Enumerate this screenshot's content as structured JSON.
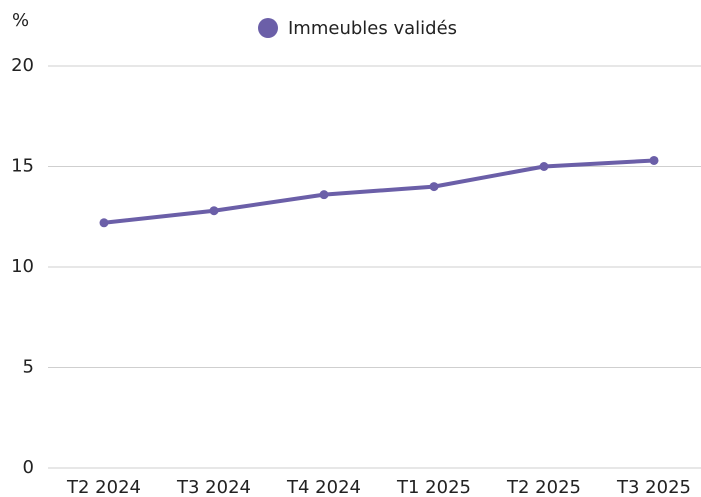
{
  "chart_data": {
    "type": "line",
    "y_axis_label": "%",
    "categories": [
      "T2 2024",
      "T3 2024",
      "T4 2024",
      "T1 2025",
      "T2 2025",
      "T3 2025"
    ],
    "series": [
      {
        "name": "Immeubles validés",
        "color": "#6b5fa8",
        "values": [
          12.2,
          12.8,
          13.6,
          14.0,
          15.0,
          15.3
        ]
      }
    ],
    "ylim": [
      0,
      20
    ],
    "yticks": [
      0,
      5,
      10,
      15,
      20
    ],
    "grid": true,
    "legend": "top"
  }
}
